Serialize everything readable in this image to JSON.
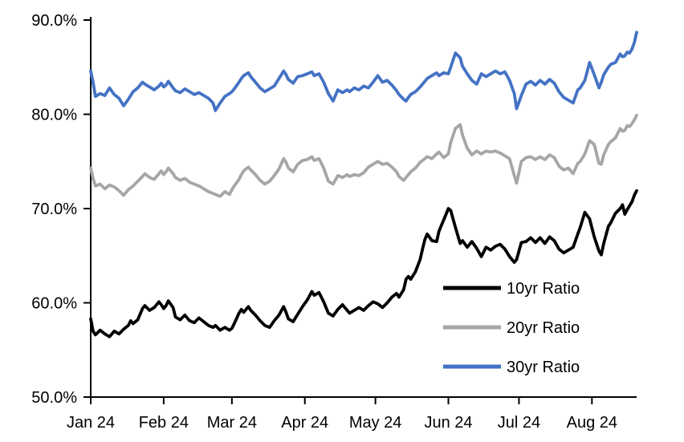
{
  "chart_data": {
    "type": "line",
    "title": "",
    "xlabel": "",
    "ylabel": "",
    "grid": false,
    "legend_position": "inside-bottom-right",
    "x_domain": [
      0,
      232
    ],
    "ylim": [
      50,
      90
    ],
    "x_axis": {
      "ticks": [
        {
          "day": 0,
          "label": "Jan 24"
        },
        {
          "day": 31,
          "label": "Feb 24"
        },
        {
          "day": 60,
          "label": "Mar 24"
        },
        {
          "day": 91,
          "label": "Apr 24"
        },
        {
          "day": 121,
          "label": "May 24"
        },
        {
          "day": 152,
          "label": "Jun 24"
        },
        {
          "day": 182,
          "label": "Jul 24"
        },
        {
          "day": 213,
          "label": "Aug 24"
        }
      ]
    },
    "y_axis": {
      "ticks": [
        {
          "value": 50,
          "label": "50.0%"
        },
        {
          "value": 60,
          "label": "60.0%"
        },
        {
          "value": 70,
          "label": "70.0%"
        },
        {
          "value": 80,
          "label": "80.0%"
        },
        {
          "value": 90,
          "label": "90.0%"
        }
      ]
    },
    "axis_color": "#000000",
    "days": [
      0,
      1,
      2,
      4,
      6,
      8,
      10,
      12,
      14,
      16,
      17,
      18,
      20,
      22,
      23,
      25,
      27,
      29,
      30,
      31,
      32,
      33,
      35,
      36,
      38,
      40,
      42,
      44,
      46,
      48,
      50,
      52,
      53,
      55,
      57,
      59,
      60,
      61,
      63,
      64,
      65,
      67,
      68,
      70,
      72,
      74,
      76,
      78,
      80,
      82,
      83,
      84,
      86,
      88,
      90,
      92,
      94,
      95,
      97,
      99,
      101,
      103,
      105,
      107,
      109,
      110,
      112,
      114,
      116,
      118,
      120,
      122,
      124,
      126,
      128,
      130,
      131,
      133,
      134,
      135,
      136,
      138,
      140,
      141,
      142,
      143,
      145,
      147,
      148,
      150,
      152,
      153,
      155,
      157,
      158,
      160,
      162,
      164,
      166,
      168,
      170,
      172,
      174,
      176,
      178,
      180,
      181,
      183,
      185,
      187,
      189,
      191,
      193,
      195,
      197,
      199,
      201,
      203,
      205,
      207,
      208,
      210,
      212,
      214,
      216,
      217,
      218,
      220,
      221,
      223,
      225,
      226,
      227,
      228,
      229,
      230,
      231,
      232
    ],
    "series": [
      {
        "name": "10yr Ratio",
        "color": "#000000",
        "values": [
          58.3,
          57.0,
          56.6,
          57.1,
          56.7,
          56.4,
          57.0,
          56.7,
          57.2,
          57.6,
          58.1,
          57.8,
          58.2,
          59.4,
          59.7,
          59.2,
          59.5,
          60.1,
          59.8,
          59.4,
          59.7,
          60.2,
          59.5,
          58.5,
          58.2,
          58.7,
          58.1,
          57.9,
          58.4,
          58.0,
          57.6,
          57.4,
          57.6,
          57.1,
          57.4,
          57.1,
          57.3,
          57.8,
          58.9,
          59.3,
          59.0,
          59.6,
          59.2,
          58.7,
          58.1,
          57.6,
          57.4,
          58.1,
          58.7,
          59.6,
          59.0,
          58.3,
          58.0,
          58.8,
          59.6,
          60.3,
          61.2,
          60.8,
          61.1,
          60.1,
          58.9,
          58.6,
          59.3,
          59.8,
          59.2,
          58.9,
          59.2,
          59.5,
          59.2,
          59.7,
          60.1,
          59.9,
          59.5,
          60.0,
          60.6,
          61.0,
          60.6,
          61.4,
          62.5,
          62.8,
          62.5,
          63.3,
          64.6,
          65.7,
          66.7,
          67.3,
          66.6,
          66.5,
          67.6,
          68.8,
          70.0,
          69.8,
          68.0,
          66.3,
          66.6,
          65.9,
          66.5,
          65.8,
          64.9,
          65.9,
          65.6,
          66.0,
          66.2,
          65.7,
          64.9,
          64.3,
          64.6,
          66.4,
          66.5,
          66.9,
          66.4,
          66.9,
          66.3,
          67.0,
          66.6,
          65.7,
          65.3,
          65.6,
          65.9,
          67.3,
          68.0,
          69.6,
          68.9,
          67.0,
          65.5,
          65.1,
          66.3,
          68.1,
          68.5,
          69.5,
          70.0,
          70.4,
          69.4,
          69.9,
          70.3,
          70.7,
          71.4,
          71.9
        ]
      },
      {
        "name": "20yr Ratio",
        "color": "#A6A6A6",
        "values": [
          74.3,
          73.2,
          72.4,
          72.6,
          72.1,
          72.5,
          72.3,
          71.9,
          71.4,
          72.0,
          72.2,
          72.4,
          72.9,
          73.4,
          73.7,
          73.3,
          73.1,
          73.7,
          74.0,
          73.6,
          73.9,
          74.3,
          73.7,
          73.3,
          73.0,
          73.2,
          72.8,
          72.6,
          72.4,
          72.1,
          71.8,
          71.6,
          71.5,
          71.3,
          71.8,
          71.5,
          72.0,
          72.4,
          73.1,
          73.6,
          74.0,
          74.4,
          74.1,
          73.6,
          73.0,
          72.6,
          72.9,
          73.5,
          74.2,
          75.3,
          74.9,
          74.3,
          73.9,
          74.7,
          75.1,
          75.2,
          75.5,
          75.1,
          75.3,
          74.3,
          72.9,
          72.6,
          73.5,
          73.3,
          73.6,
          73.4,
          73.6,
          73.5,
          73.8,
          74.4,
          74.7,
          75.0,
          74.7,
          74.8,
          74.4,
          73.9,
          73.4,
          73.0,
          73.3,
          73.6,
          73.9,
          74.3,
          74.9,
          75.1,
          75.3,
          75.5,
          75.3,
          75.8,
          76.0,
          75.4,
          75.8,
          77.0,
          78.5,
          78.9,
          77.8,
          76.4,
          75.7,
          76.1,
          75.8,
          76.1,
          76.0,
          76.1,
          75.9,
          75.6,
          75.3,
          73.5,
          72.7,
          75.0,
          75.4,
          75.5,
          75.2,
          75.5,
          75.2,
          75.7,
          75.4,
          74.5,
          74.1,
          74.3,
          73.7,
          74.8,
          75.0,
          75.8,
          77.2,
          76.8,
          74.8,
          74.7,
          75.7,
          76.8,
          77.1,
          77.5,
          78.5,
          78.2,
          78.3,
          78.8,
          78.7,
          79.0,
          79.4,
          79.9
        ]
      },
      {
        "name": "30yr Ratio",
        "color": "#4472C4",
        "values": [
          84.6,
          83.4,
          81.9,
          82.2,
          82.0,
          82.8,
          82.1,
          81.7,
          80.9,
          81.6,
          82.0,
          82.4,
          82.8,
          83.4,
          83.2,
          82.9,
          82.6,
          83.0,
          83.3,
          82.9,
          83.1,
          83.5,
          82.8,
          82.5,
          82.3,
          82.7,
          82.4,
          82.1,
          82.3,
          82.0,
          81.7,
          81.2,
          80.4,
          81.2,
          81.9,
          82.2,
          82.4,
          82.7,
          83.4,
          83.8,
          84.1,
          84.4,
          84.0,
          83.4,
          82.8,
          82.4,
          82.7,
          83.0,
          83.8,
          84.6,
          84.2,
          83.7,
          83.3,
          84.0,
          84.1,
          84.3,
          84.5,
          84.1,
          84.3,
          83.4,
          82.2,
          81.4,
          82.6,
          82.3,
          82.6,
          82.4,
          82.8,
          82.6,
          83.0,
          82.8,
          83.4,
          84.1,
          83.4,
          83.6,
          83.1,
          82.5,
          82.1,
          81.6,
          81.4,
          81.8,
          82.1,
          82.4,
          82.9,
          83.2,
          83.5,
          83.8,
          84.1,
          84.4,
          84.1,
          84.4,
          84.3,
          85.0,
          86.5,
          86.0,
          85.1,
          84.3,
          83.6,
          83.2,
          84.3,
          84.0,
          84.3,
          84.6,
          84.3,
          84.5,
          83.6,
          82.2,
          80.6,
          82.0,
          83.2,
          83.5,
          83.1,
          83.6,
          83.2,
          83.7,
          83.3,
          82.4,
          81.8,
          81.5,
          81.2,
          82.6,
          82.8,
          83.6,
          85.5,
          84.2,
          82.8,
          83.4,
          84.2,
          85.0,
          85.3,
          85.5,
          86.4,
          86.1,
          86.2,
          86.6,
          86.5,
          86.9,
          87.6,
          88.7
        ]
      }
    ]
  }
}
